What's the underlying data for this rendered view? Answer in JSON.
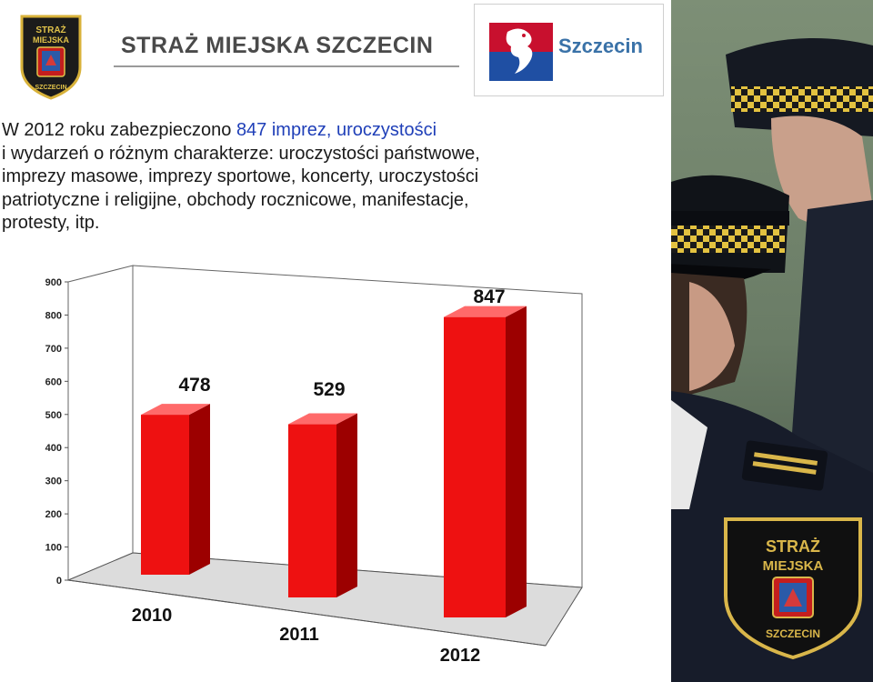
{
  "header": {
    "org_title": "STRAŻ MIEJSKA SZCZECIN",
    "badge_text_top": "STRAŻ",
    "badge_text_mid": "MIEJSKA",
    "badge_text_bottom": "SZCZECIN",
    "city_logo_text": "Szczecin"
  },
  "description": {
    "line1_pre": "W 2012 roku zabezpieczono ",
    "line1_highlight": "847 imprez, uroczystości",
    "line2": " i wydarzeń o różnym charakterze: uroczystości państwowe,",
    "line3": "imprezy masowe,  imprezy sportowe, koncerty, uroczystości",
    "line4": "patriotyczne i religijne, obchody rocznicowe, manifestacje,",
    "line5": "protesty, itp."
  },
  "colors": {
    "bar_front": "#ee1111",
    "bar_side": "#9c0000",
    "bar_top": "#ff6a6a",
    "highlight_text": "#1f3fb8"
  },
  "chart_data": {
    "type": "bar",
    "categories": [
      "2010",
      "2011",
      "2012"
    ],
    "values": [
      478,
      529,
      847
    ],
    "data_labels": [
      "478",
      "529",
      "847"
    ],
    "yticks": [
      "0",
      "100",
      "200",
      "300",
      "400",
      "500",
      "600",
      "700",
      "800",
      "900"
    ],
    "ylim": [
      0,
      900
    ],
    "title": "",
    "xlabel": "",
    "ylabel": "",
    "grid": false,
    "legend": "none",
    "style": "3d"
  },
  "photo": {
    "patch_text_top": "STRAŻ",
    "patch_text_mid": "MIEJSKA",
    "patch_text_bottom": "SZCZECIN"
  }
}
